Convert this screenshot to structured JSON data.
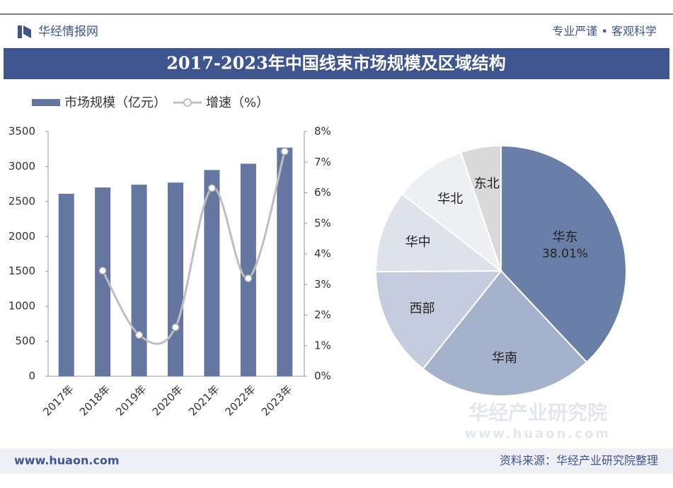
{
  "header": {
    "brand": "华经情报网",
    "slogan": "专业严谨 • 客观科学"
  },
  "title": "2017-2023年中国线束市场规模及区域结构",
  "chart_data": [
    {
      "type": "bar_line",
      "categories": [
        "2017年",
        "2018年",
        "2019年",
        "2020年",
        "2021年",
        "2022年",
        "2023年"
      ],
      "series": [
        {
          "name": "市场规模（亿元）",
          "color": "#6577a0",
          "type": "bar",
          "values": [
            2610,
            2700,
            2740,
            2770,
            2950,
            3040,
            3270
          ]
        },
        {
          "name": "增速（%）",
          "color": "#bfbfbf",
          "type": "line",
          "axis": "y2",
          "values": [
            null,
            3.45,
            1.35,
            1.6,
            6.15,
            3.2,
            7.35
          ]
        }
      ],
      "ylim": [
        0,
        3500
      ],
      "yticks": [
        0,
        500,
        1000,
        1500,
        2000,
        2500,
        3000,
        3500
      ],
      "y2lim": [
        0,
        8
      ],
      "y2ticks": [
        {
          "value": 0,
          "label": "0%"
        },
        {
          "value": 1,
          "label": "1%"
        },
        {
          "value": 2,
          "label": "2%"
        },
        {
          "value": 3,
          "label": "3%"
        },
        {
          "value": 4,
          "label": "4%"
        },
        {
          "value": 5,
          "label": "5%"
        },
        {
          "value": 6,
          "label": "6%"
        },
        {
          "value": 7,
          "label": "7%"
        },
        {
          "value": 8,
          "label": "8%"
        }
      ],
      "legend": "top-left"
    },
    {
      "type": "pie",
      "categories": [
        "华东",
        "华南",
        "西部",
        "华中",
        "华北",
        "东北"
      ],
      "values": [
        38.01,
        22.69,
        14.2,
        10.6,
        9.3,
        5.2
      ],
      "value_labels": [
        "38.01%",
        null,
        null,
        null,
        null,
        null
      ],
      "colors": [
        "#6a7fa8",
        "#a5b2cc",
        "#c5ccdd",
        "#dde2ec",
        "#eeeff3",
        "#d9d9d9"
      ]
    }
  ],
  "watermark": [
    "华经产业研究院",
    "www.huaon.com"
  ],
  "footer": {
    "website": "www.huaon.com",
    "source": "资料来源：华经产业研究院整理"
  }
}
